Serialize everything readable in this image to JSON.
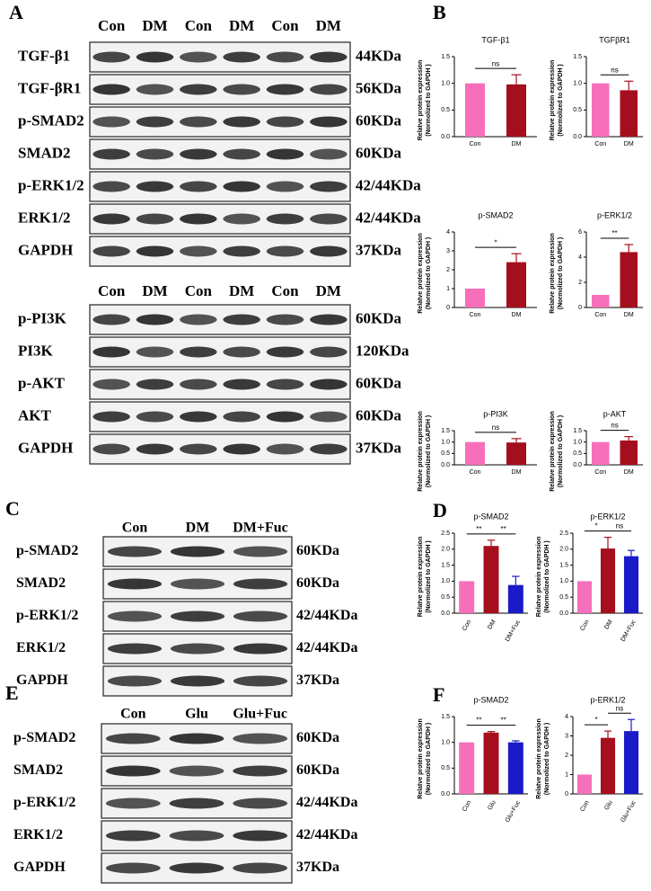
{
  "panel_labels": [
    "A",
    "B",
    "C",
    "D",
    "E",
    "F"
  ],
  "blots": [
    {
      "lanes": [
        "Con",
        "DM",
        "Con",
        "DM",
        "Con",
        "DM"
      ],
      "rows": [
        {
          "name": "TGF-β1",
          "size": "44KDa"
        },
        {
          "name": "TGF-βR1",
          "size": "56KDa"
        },
        {
          "name": "p-SMAD2",
          "size": "60KDa"
        },
        {
          "name": "SMAD2",
          "size": "60KDa"
        },
        {
          "name": "p-ERK1/2",
          "size": "42/44KDa"
        },
        {
          "name": "ERK1/2",
          "size": "42/44KDa"
        },
        {
          "name": "GAPDH",
          "size": "37KDa"
        }
      ]
    },
    {
      "lanes": [
        "Con",
        "DM",
        "Con",
        "DM",
        "Con",
        "DM"
      ],
      "rows": [
        {
          "name": "p-PI3K",
          "size": "60KDa"
        },
        {
          "name": "PI3K",
          "size": "120KDa"
        },
        {
          "name": "p-AKT",
          "size": "60KDa"
        },
        {
          "name": "AKT",
          "size": "60KDa"
        },
        {
          "name": "GAPDH",
          "size": "37KDa"
        }
      ]
    },
    {
      "lanes": [
        "Con",
        "DM",
        "DM+Fuc"
      ],
      "rows": [
        {
          "name": "p-SMAD2",
          "size": "60KDa"
        },
        {
          "name": "SMAD2",
          "size": "60KDa"
        },
        {
          "name": "p-ERK1/2",
          "size": "42/44KDa"
        },
        {
          "name": "ERK1/2",
          "size": "42/44KDa"
        },
        {
          "name": "GAPDH",
          "size": "37KDa"
        }
      ]
    },
    {
      "lanes": [
        "Con",
        "Glu",
        "Glu+Fuc"
      ],
      "rows": [
        {
          "name": "p-SMAD2",
          "size": "60KDa"
        },
        {
          "name": "SMAD2",
          "size": "60KDa"
        },
        {
          "name": "p-ERK1/2",
          "size": "42/44KDa"
        },
        {
          "name": "ERK1/2",
          "size": "42/44KDa"
        },
        {
          "name": "GAPDH",
          "size": "37KDa"
        }
      ]
    }
  ],
  "chart_data": [
    {
      "type": "bar",
      "title": "TGF-β1",
      "ylabel": [
        "Relatve protein expression",
        "(Normolized to GAPDH )"
      ],
      "categories": [
        "Con",
        "DM"
      ],
      "values": [
        1.0,
        0.98
      ],
      "errors": [
        null,
        0.18
      ],
      "colors": [
        "#f76fba",
        "#a50e1c"
      ],
      "ylim": [
        0,
        1.5
      ],
      "yticks": [
        {
          "value": 0,
          "label": "0.0"
        },
        {
          "value": 0.5,
          "label": "0.5"
        },
        {
          "value": 1,
          "label": "1.0"
        },
        {
          "value": 1.5,
          "label": "1.5"
        }
      ],
      "significance": [
        {
          "label": "ns",
          "from": 0,
          "to": 1
        }
      ]
    },
    {
      "type": "bar",
      "title": "TGFβR1",
      "ylabel": [
        "Relatve protein expression",
        "(Normolized to GAPDH )"
      ],
      "categories": [
        "Con",
        "DM"
      ],
      "values": [
        1.0,
        0.87
      ],
      "errors": [
        null,
        0.17
      ],
      "colors": [
        "#f76fba",
        "#a50e1c"
      ],
      "ylim": [
        0,
        1.5
      ],
      "yticks": [
        {
          "value": 0,
          "label": "0.0"
        },
        {
          "value": 0.5,
          "label": "0.5"
        },
        {
          "value": 1,
          "label": "1.0"
        },
        {
          "value": 1.5,
          "label": "1.5"
        }
      ],
      "significance": [
        {
          "label": "ns",
          "from": 0,
          "to": 1
        }
      ]
    },
    {
      "type": "bar",
      "title": "p-SMAD2",
      "ylabel": [
        "Relatve protein expression",
        "(Normolized to GAPDH )"
      ],
      "categories": [
        "Con",
        "DM"
      ],
      "values": [
        1.0,
        2.4
      ],
      "errors": [
        null,
        0.45
      ],
      "colors": [
        "#f76fba",
        "#a50e1c"
      ],
      "ylim": [
        0,
        4
      ],
      "yticks": [
        0,
        1,
        2,
        3,
        4
      ],
      "significance": [
        {
          "label": "*",
          "from": 0,
          "to": 1
        }
      ]
    },
    {
      "type": "bar",
      "title": "p-ERK1/2",
      "ylabel": [
        "Relatve protein expression",
        "(Normolized to GAPDH )"
      ],
      "categories": [
        "Con",
        "DM"
      ],
      "values": [
        1.0,
        4.4
      ],
      "errors": [
        null,
        0.6
      ],
      "colors": [
        "#f76fba",
        "#a50e1c"
      ],
      "ylim": [
        0,
        6
      ],
      "yticks": [
        0,
        2,
        4,
        6
      ],
      "significance": [
        {
          "label": "**",
          "from": 0,
          "to": 1
        }
      ]
    },
    {
      "type": "bar",
      "title": "p-PI3K",
      "ylabel": [
        "Relatve protein expression",
        "(Normolized to GAPDH )"
      ],
      "categories": [
        "Con",
        "DM"
      ],
      "values": [
        1.0,
        0.98
      ],
      "errors": [
        null,
        0.17
      ],
      "colors": [
        "#f76fba",
        "#a50e1c"
      ],
      "ylim": [
        0,
        1.5
      ],
      "yticks": [
        {
          "value": 0,
          "label": "0.0"
        },
        {
          "value": 0.5,
          "label": "0.5"
        },
        {
          "value": 1,
          "label": "1.0"
        },
        {
          "value": 1.5,
          "label": "1.5"
        }
      ],
      "significance": [
        {
          "label": "ns",
          "from": 0,
          "to": 1
        }
      ]
    },
    {
      "type": "bar",
      "title": "p-AKT",
      "ylabel": [
        "Relatve protein expression",
        "(Normolized to GAPDH )"
      ],
      "categories": [
        "Con",
        "DM"
      ],
      "values": [
        1.0,
        1.07
      ],
      "errors": [
        null,
        0.17
      ],
      "colors": [
        "#f76fba",
        "#a50e1c"
      ],
      "ylim": [
        0,
        1.5
      ],
      "yticks": [
        {
          "value": 0,
          "label": "0.0"
        },
        {
          "value": 0.5,
          "label": "0.5"
        },
        {
          "value": 1,
          "label": "1.0"
        },
        {
          "value": 1.5,
          "label": "1.5"
        }
      ],
      "significance": [
        {
          "label": "ns",
          "from": 0,
          "to": 1
        }
      ]
    },
    {
      "type": "bar",
      "title": "p-SMAD2",
      "ylabel": [
        "Relatve protein expression",
        "(Normolized to GAPDH )"
      ],
      "categories": [
        "Con",
        "DM",
        "DM+Fuc"
      ],
      "values": [
        1.0,
        2.1,
        0.88
      ],
      "errors": [
        null,
        0.18,
        0.27
      ],
      "colors": [
        "#f76fba",
        "#a50e1c",
        "#1a1ac8"
      ],
      "ylim": [
        0,
        2.5
      ],
      "yticks": [
        {
          "value": 0,
          "label": "0.0"
        },
        {
          "value": 0.5,
          "label": "0.5"
        },
        {
          "value": 1,
          "label": "1.0"
        },
        {
          "value": 1.5,
          "label": "1.5"
        },
        {
          "value": 2,
          "label": "2.0"
        },
        {
          "value": 2.5,
          "label": "2.5"
        }
      ],
      "significance": [
        {
          "label": "**",
          "from": 0,
          "to": 1
        },
        {
          "label": "**",
          "from": 1,
          "to": 2
        }
      ]
    },
    {
      "type": "bar",
      "title": "p-ERK1/2",
      "ylabel": [
        "Relatve protein expression",
        "(Normolized to GAPDH )"
      ],
      "categories": [
        "Con",
        "DM",
        "DM+Fuc"
      ],
      "values": [
        1.0,
        2.02,
        1.78
      ],
      "errors": [
        null,
        0.35,
        0.18
      ],
      "colors": [
        "#f76fba",
        "#a50e1c",
        "#1a1ac8"
      ],
      "ylim": [
        0,
        2.5
      ],
      "yticks": [
        {
          "value": 0,
          "label": "0.0"
        },
        {
          "value": 0.5,
          "label": "0.5"
        },
        {
          "value": 1,
          "label": "1.0"
        },
        {
          "value": 1.5,
          "label": "1.5"
        },
        {
          "value": 2,
          "label": "2.0"
        },
        {
          "value": 2.5,
          "label": "2.5"
        }
      ],
      "significance": [
        {
          "label": "*",
          "from": 0,
          "to": 1
        },
        {
          "label": "ns",
          "from": 1,
          "to": 2
        }
      ]
    },
    {
      "type": "bar",
      "title": "p-SMAD2",
      "ylabel": [
        "Relatve protein expression",
        "(Normolized to GAPDH )"
      ],
      "categories": [
        "Con",
        "Glu",
        "Glu+Fuc"
      ],
      "values": [
        1.0,
        1.19,
        1.0
      ],
      "errors": [
        null,
        0.02,
        0.03
      ],
      "colors": [
        "#f76fba",
        "#a50e1c",
        "#1a1ac8"
      ],
      "ylim": [
        0,
        1.5
      ],
      "yticks": [
        {
          "value": 0,
          "label": "0.0"
        },
        {
          "value": 0.5,
          "label": "0.5"
        },
        {
          "value": 1,
          "label": "1.0"
        },
        {
          "value": 1.5,
          "label": "1.5"
        }
      ],
      "significance": [
        {
          "label": "**",
          "from": 0,
          "to": 1
        },
        {
          "label": "**",
          "from": 1,
          "to": 2
        }
      ]
    },
    {
      "type": "bar",
      "title": "p-ERK1/2",
      "ylabel": [
        "Relatve protein expression",
        "(Normolized to GAPDH )"
      ],
      "categories": [
        "Con",
        "Glu",
        "Glu+Fuc"
      ],
      "values": [
        1.0,
        2.9,
        3.25
      ],
      "errors": [
        null,
        0.35,
        0.6
      ],
      "colors": [
        "#f76fba",
        "#a50e1c",
        "#1a1ac8"
      ],
      "ylim": [
        0,
        4
      ],
      "yticks": [
        0,
        1,
        2,
        3,
        4
      ],
      "significance": [
        {
          "label": "*",
          "from": 0,
          "to": 1
        },
        {
          "label": "ns",
          "from": 1,
          "to": 2
        }
      ]
    }
  ]
}
